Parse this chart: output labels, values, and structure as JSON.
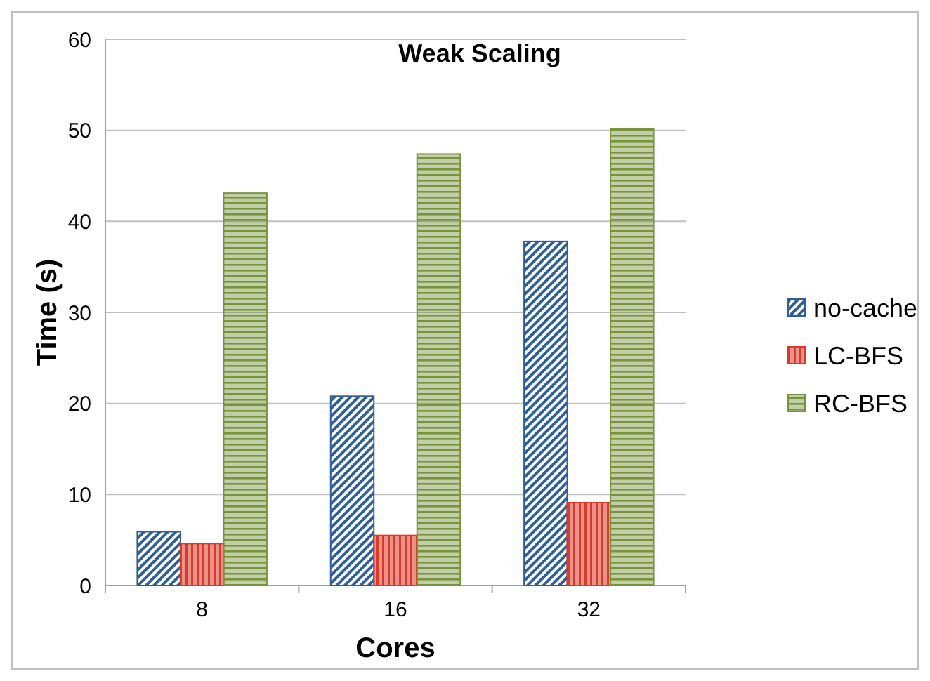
{
  "chart_data": {
    "type": "bar",
    "title": "Weak Scaling",
    "xlabel": "Cores",
    "ylabel": "Time (s)",
    "categories": [
      "8",
      "16",
      "32"
    ],
    "series": [
      {
        "name": "no-cache",
        "color": "#2e5f9a",
        "values": [
          5.9,
          20.8,
          37.8
        ]
      },
      {
        "name": "LC-BFS",
        "color": "#d83b2a",
        "values": [
          4.6,
          5.5,
          9.1
        ]
      },
      {
        "name": "RC-BFS",
        "color": "#77933c",
        "values": [
          43.1,
          47.4,
          50.2
        ]
      }
    ],
    "ylim": [
      0,
      60
    ],
    "yticks": [
      0,
      10,
      20,
      30,
      40,
      50,
      60
    ],
    "grid": "y",
    "legend": "right"
  }
}
